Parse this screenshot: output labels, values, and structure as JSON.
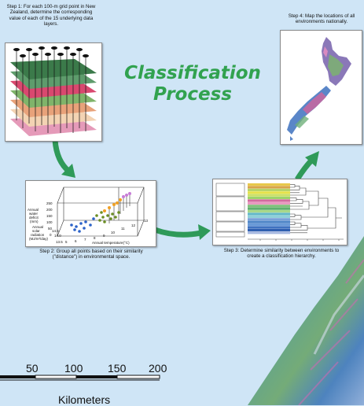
{
  "title": {
    "line1": "Classification",
    "line2": "Process"
  },
  "steps": {
    "step1": "Step 1: For each 100-m grid point in New Zealand, determine the corresponding value of each of the 15 underlying data layers.",
    "step2": "Step 2: Group all points based on their similarity (\"distance\") in environmental space.",
    "step3": "Step 3: Determine similarity between environments to create a classification hierarchy.",
    "step4": "Step 4: Map the locations of all environments nationally."
  },
  "plot3d": {
    "z_label": [
      "Annual",
      "water",
      "deficit",
      "(mm)"
    ],
    "z_ticks": [
      "250",
      "200",
      "150",
      "100",
      "50",
      "0"
    ],
    "y_label": [
      "Annual",
      "solar",
      "radiation",
      "(MJ/m²/day)"
    ],
    "y_ticks": [
      "14.5",
      "14.0",
      "13.5"
    ],
    "x_label": "Annual temperature(°C)",
    "x_ticks": [
      "5",
      "6",
      "7",
      "8",
      "9",
      "10",
      "11",
      "12",
      "13"
    ]
  },
  "scale_bar": {
    "ticks": [
      "50",
      "100",
      "150",
      "200"
    ],
    "unit": "Kilometers"
  },
  "colors": {
    "title": "#31a24f",
    "arrow": "#2f9a59",
    "background": "#cfe5f6"
  }
}
